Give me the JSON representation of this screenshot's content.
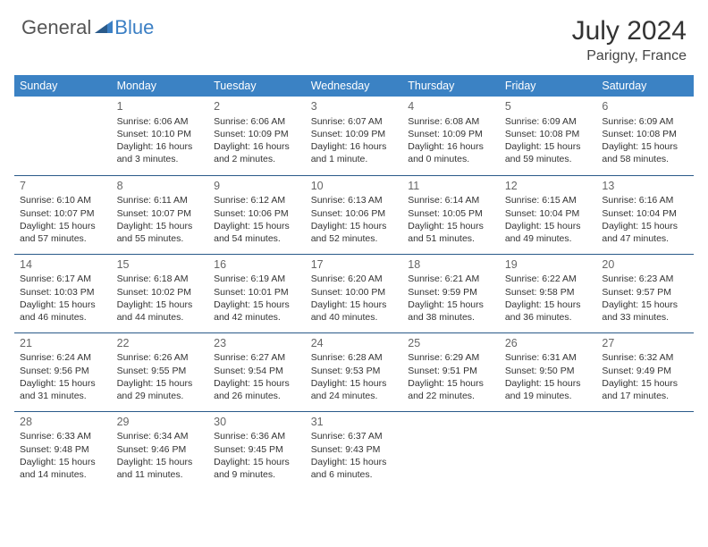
{
  "logo": {
    "text1": "General",
    "text2": "Blue"
  },
  "title": "July 2024",
  "location": "Parigny, France",
  "colors": {
    "header_bg": "#3b82c4",
    "header_text": "#ffffff",
    "row_border": "#2a5a8a",
    "logo_gray": "#555555",
    "logo_blue": "#3b7fc4"
  },
  "day_headers": [
    "Sunday",
    "Monday",
    "Tuesday",
    "Wednesday",
    "Thursday",
    "Friday",
    "Saturday"
  ],
  "weeks": [
    [
      null,
      {
        "n": "1",
        "sr": "Sunrise: 6:06 AM",
        "ss": "Sunset: 10:10 PM",
        "dl1": "Daylight: 16 hours",
        "dl2": "and 3 minutes."
      },
      {
        "n": "2",
        "sr": "Sunrise: 6:06 AM",
        "ss": "Sunset: 10:09 PM",
        "dl1": "Daylight: 16 hours",
        "dl2": "and 2 minutes."
      },
      {
        "n": "3",
        "sr": "Sunrise: 6:07 AM",
        "ss": "Sunset: 10:09 PM",
        "dl1": "Daylight: 16 hours",
        "dl2": "and 1 minute."
      },
      {
        "n": "4",
        "sr": "Sunrise: 6:08 AM",
        "ss": "Sunset: 10:09 PM",
        "dl1": "Daylight: 16 hours",
        "dl2": "and 0 minutes."
      },
      {
        "n": "5",
        "sr": "Sunrise: 6:09 AM",
        "ss": "Sunset: 10:08 PM",
        "dl1": "Daylight: 15 hours",
        "dl2": "and 59 minutes."
      },
      {
        "n": "6",
        "sr": "Sunrise: 6:09 AM",
        "ss": "Sunset: 10:08 PM",
        "dl1": "Daylight: 15 hours",
        "dl2": "and 58 minutes."
      }
    ],
    [
      {
        "n": "7",
        "sr": "Sunrise: 6:10 AM",
        "ss": "Sunset: 10:07 PM",
        "dl1": "Daylight: 15 hours",
        "dl2": "and 57 minutes."
      },
      {
        "n": "8",
        "sr": "Sunrise: 6:11 AM",
        "ss": "Sunset: 10:07 PM",
        "dl1": "Daylight: 15 hours",
        "dl2": "and 55 minutes."
      },
      {
        "n": "9",
        "sr": "Sunrise: 6:12 AM",
        "ss": "Sunset: 10:06 PM",
        "dl1": "Daylight: 15 hours",
        "dl2": "and 54 minutes."
      },
      {
        "n": "10",
        "sr": "Sunrise: 6:13 AM",
        "ss": "Sunset: 10:06 PM",
        "dl1": "Daylight: 15 hours",
        "dl2": "and 52 minutes."
      },
      {
        "n": "11",
        "sr": "Sunrise: 6:14 AM",
        "ss": "Sunset: 10:05 PM",
        "dl1": "Daylight: 15 hours",
        "dl2": "and 51 minutes."
      },
      {
        "n": "12",
        "sr": "Sunrise: 6:15 AM",
        "ss": "Sunset: 10:04 PM",
        "dl1": "Daylight: 15 hours",
        "dl2": "and 49 minutes."
      },
      {
        "n": "13",
        "sr": "Sunrise: 6:16 AM",
        "ss": "Sunset: 10:04 PM",
        "dl1": "Daylight: 15 hours",
        "dl2": "and 47 minutes."
      }
    ],
    [
      {
        "n": "14",
        "sr": "Sunrise: 6:17 AM",
        "ss": "Sunset: 10:03 PM",
        "dl1": "Daylight: 15 hours",
        "dl2": "and 46 minutes."
      },
      {
        "n": "15",
        "sr": "Sunrise: 6:18 AM",
        "ss": "Sunset: 10:02 PM",
        "dl1": "Daylight: 15 hours",
        "dl2": "and 44 minutes."
      },
      {
        "n": "16",
        "sr": "Sunrise: 6:19 AM",
        "ss": "Sunset: 10:01 PM",
        "dl1": "Daylight: 15 hours",
        "dl2": "and 42 minutes."
      },
      {
        "n": "17",
        "sr": "Sunrise: 6:20 AM",
        "ss": "Sunset: 10:00 PM",
        "dl1": "Daylight: 15 hours",
        "dl2": "and 40 minutes."
      },
      {
        "n": "18",
        "sr": "Sunrise: 6:21 AM",
        "ss": "Sunset: 9:59 PM",
        "dl1": "Daylight: 15 hours",
        "dl2": "and 38 minutes."
      },
      {
        "n": "19",
        "sr": "Sunrise: 6:22 AM",
        "ss": "Sunset: 9:58 PM",
        "dl1": "Daylight: 15 hours",
        "dl2": "and 36 minutes."
      },
      {
        "n": "20",
        "sr": "Sunrise: 6:23 AM",
        "ss": "Sunset: 9:57 PM",
        "dl1": "Daylight: 15 hours",
        "dl2": "and 33 minutes."
      }
    ],
    [
      {
        "n": "21",
        "sr": "Sunrise: 6:24 AM",
        "ss": "Sunset: 9:56 PM",
        "dl1": "Daylight: 15 hours",
        "dl2": "and 31 minutes."
      },
      {
        "n": "22",
        "sr": "Sunrise: 6:26 AM",
        "ss": "Sunset: 9:55 PM",
        "dl1": "Daylight: 15 hours",
        "dl2": "and 29 minutes."
      },
      {
        "n": "23",
        "sr": "Sunrise: 6:27 AM",
        "ss": "Sunset: 9:54 PM",
        "dl1": "Daylight: 15 hours",
        "dl2": "and 26 minutes."
      },
      {
        "n": "24",
        "sr": "Sunrise: 6:28 AM",
        "ss": "Sunset: 9:53 PM",
        "dl1": "Daylight: 15 hours",
        "dl2": "and 24 minutes."
      },
      {
        "n": "25",
        "sr": "Sunrise: 6:29 AM",
        "ss": "Sunset: 9:51 PM",
        "dl1": "Daylight: 15 hours",
        "dl2": "and 22 minutes."
      },
      {
        "n": "26",
        "sr": "Sunrise: 6:31 AM",
        "ss": "Sunset: 9:50 PM",
        "dl1": "Daylight: 15 hours",
        "dl2": "and 19 minutes."
      },
      {
        "n": "27",
        "sr": "Sunrise: 6:32 AM",
        "ss": "Sunset: 9:49 PM",
        "dl1": "Daylight: 15 hours",
        "dl2": "and 17 minutes."
      }
    ],
    [
      {
        "n": "28",
        "sr": "Sunrise: 6:33 AM",
        "ss": "Sunset: 9:48 PM",
        "dl1": "Daylight: 15 hours",
        "dl2": "and 14 minutes."
      },
      {
        "n": "29",
        "sr": "Sunrise: 6:34 AM",
        "ss": "Sunset: 9:46 PM",
        "dl1": "Daylight: 15 hours",
        "dl2": "and 11 minutes."
      },
      {
        "n": "30",
        "sr": "Sunrise: 6:36 AM",
        "ss": "Sunset: 9:45 PM",
        "dl1": "Daylight: 15 hours",
        "dl2": "and 9 minutes."
      },
      {
        "n": "31",
        "sr": "Sunrise: 6:37 AM",
        "ss": "Sunset: 9:43 PM",
        "dl1": "Daylight: 15 hours",
        "dl2": "and 6 minutes."
      },
      null,
      null,
      null
    ]
  ]
}
